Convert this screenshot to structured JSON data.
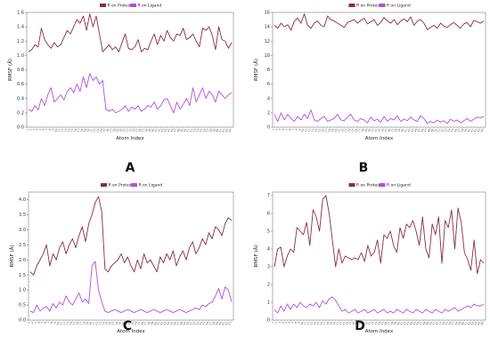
{
  "chart_data": [
    {
      "panel": "A",
      "type": "line",
      "ylabel": "RMSF (Å)",
      "xlabel": "Atom Index",
      "ylim": [
        0,
        1.6
      ],
      "yticks": [
        0.0,
        0.2,
        0.4,
        0.6,
        0.8,
        1.0,
        1.2,
        1.4,
        1.6
      ],
      "legend": "top-center",
      "grid": false,
      "colors": {
        "protein": "#8b2a4f",
        "ligand": "#b04fe0"
      },
      "series": [
        {
          "name": "R on Protein",
          "values": [
            1.05,
            1.08,
            1.15,
            1.12,
            1.38,
            1.22,
            1.15,
            1.1,
            1.18,
            1.12,
            1.15,
            1.25,
            1.35,
            1.3,
            1.4,
            1.5,
            1.45,
            1.55,
            1.35,
            1.58,
            1.4,
            1.55,
            1.3,
            1.05,
            1.1,
            1.15,
            1.08,
            1.12,
            1.05,
            1.18,
            1.3,
            1.1,
            1.08,
            1.12,
            1.22,
            1.05,
            1.1,
            1.08,
            1.2,
            1.3,
            1.15,
            1.28,
            1.2,
            1.35,
            1.25,
            1.2,
            1.3,
            1.28,
            1.38,
            1.22,
            1.25,
            1.3,
            1.2,
            1.12,
            1.38,
            1.35,
            1.4,
            1.28,
            1.08,
            1.4,
            1.22,
            1.2,
            1.1,
            1.18
          ]
        },
        {
          "name": "R on Ligand",
          "values": [
            0.25,
            0.22,
            0.3,
            0.24,
            0.4,
            0.3,
            0.45,
            0.55,
            0.35,
            0.4,
            0.45,
            0.38,
            0.5,
            0.55,
            0.48,
            0.6,
            0.5,
            0.7,
            0.55,
            0.75,
            0.65,
            0.7,
            0.6,
            0.65,
            0.25,
            0.22,
            0.25,
            0.2,
            0.22,
            0.25,
            0.3,
            0.22,
            0.28,
            0.25,
            0.3,
            0.22,
            0.25,
            0.3,
            0.28,
            0.35,
            0.25,
            0.3,
            0.38,
            0.4,
            0.3,
            0.2,
            0.35,
            0.25,
            0.32,
            0.4,
            0.3,
            0.55,
            0.35,
            0.45,
            0.55,
            0.4,
            0.5,
            0.45,
            0.35,
            0.5,
            0.45,
            0.4,
            0.45,
            0.48
          ]
        }
      ]
    },
    {
      "panel": "B",
      "type": "line",
      "ylabel": "RMSF (Å)",
      "xlabel": "Atom Index",
      "ylim": [
        0,
        16
      ],
      "yticks": [
        0,
        2,
        4,
        6,
        8,
        10,
        12,
        14,
        16
      ],
      "legend": "top-center",
      "grid": false,
      "colors": {
        "protein": "#8b2a4f",
        "ligand": "#b04fe0"
      },
      "series": [
        {
          "name": "R on Protein",
          "values": [
            14.2,
            13.8,
            14.5,
            14.0,
            14.3,
            13.5,
            14.8,
            15.2,
            14.5,
            15.8,
            14.2,
            13.8,
            14.5,
            14.8,
            14.2,
            14.0,
            15.5,
            15.0,
            14.8,
            14.5,
            14.2,
            13.9,
            14.6,
            14.8,
            15.0,
            14.5,
            14.9,
            15.2,
            14.4,
            14.7,
            15.0,
            14.2,
            14.6,
            15.3,
            14.8,
            14.5,
            15.0,
            14.3,
            14.8,
            15.1,
            14.7,
            15.4,
            14.2,
            14.8,
            15.0,
            14.5,
            13.6,
            13.9,
            14.2,
            13.8,
            14.5,
            14.1,
            13.9,
            14.3,
            14.6,
            14.2,
            13.8,
            14.4,
            14.6,
            14.0,
            14.9,
            14.7,
            14.5,
            14.8
          ]
        },
        {
          "name": "R on Ligand",
          "values": [
            1.8,
            0.8,
            2.0,
            1.0,
            1.8,
            1.2,
            0.8,
            1.5,
            1.0,
            1.8,
            1.2,
            2.4,
            1.0,
            0.8,
            1.2,
            1.5,
            0.8,
            1.0,
            1.2,
            1.8,
            1.0,
            0.9,
            1.4,
            1.8,
            1.0,
            0.8,
            1.2,
            1.0,
            0.6,
            1.4,
            0.9,
            1.1,
            0.7,
            1.5,
            0.8,
            1.2,
            1.0,
            1.6,
            0.8,
            1.1,
            0.9,
            1.4,
            1.0,
            0.8,
            1.6,
            1.2,
            0.5,
            0.8,
            0.6,
            1.0,
            0.7,
            0.9,
            0.5,
            1.1,
            0.8,
            1.0,
            0.6,
            0.9,
            1.2,
            0.8,
            1.1,
            1.4,
            1.3,
            1.5
          ]
        }
      ]
    },
    {
      "panel": "C",
      "type": "line",
      "ylabel": "RMSF (Å)",
      "xlabel": "Atom Index",
      "ylim": [
        0,
        4.25
      ],
      "yticks": [
        0.0,
        0.5,
        1.0,
        1.5,
        2.0,
        2.5,
        3.0,
        3.5,
        4.0
      ],
      "legend": "top-center",
      "grid": false,
      "colors": {
        "protein": "#8b2a4f",
        "ligand": "#b04fe0"
      },
      "series": [
        {
          "name": "R on Protein",
          "values": [
            1.6,
            1.5,
            1.8,
            2.0,
            2.2,
            2.5,
            1.8,
            2.2,
            2.0,
            2.4,
            2.6,
            2.2,
            2.5,
            2.7,
            2.4,
            2.8,
            3.1,
            2.6,
            3.2,
            3.5,
            3.9,
            4.1,
            3.6,
            1.7,
            1.6,
            1.8,
            1.9,
            2.0,
            2.2,
            1.9,
            2.1,
            1.8,
            1.6,
            2.0,
            1.7,
            2.2,
            1.9,
            2.0,
            1.8,
            1.6,
            2.1,
            1.9,
            2.2,
            2.0,
            2.3,
            1.8,
            2.1,
            2.3,
            2.0,
            2.4,
            2.6,
            2.2,
            2.4,
            2.7,
            2.5,
            2.9,
            2.7,
            3.1,
            3.0,
            2.8,
            3.2,
            3.4,
            3.3
          ]
        },
        {
          "name": "R on Ligand",
          "values": [
            0.3,
            0.25,
            0.5,
            0.3,
            0.4,
            0.45,
            0.3,
            0.55,
            0.4,
            0.6,
            0.5,
            0.8,
            0.6,
            0.5,
            0.7,
            0.9,
            0.6,
            0.7,
            0.55,
            1.8,
            1.95,
            1.0,
            0.6,
            0.3,
            0.25,
            0.3,
            0.35,
            0.3,
            0.25,
            0.3,
            0.35,
            0.3,
            0.25,
            0.3,
            0.35,
            0.3,
            0.25,
            0.3,
            0.35,
            0.3,
            0.25,
            0.3,
            0.35,
            0.3,
            0.25,
            0.3,
            0.35,
            0.3,
            0.25,
            0.3,
            0.35,
            0.4,
            0.35,
            0.5,
            0.45,
            0.55,
            0.6,
            0.8,
            1.05,
            0.7,
            1.1,
            1.0,
            0.6
          ]
        }
      ]
    },
    {
      "panel": "D",
      "type": "line",
      "ylabel": "RMSF (Å)",
      "xlabel": "Atom Index",
      "ylim": [
        0,
        7.2
      ],
      "yticks": [
        0,
        1,
        2,
        3,
        4,
        5,
        6,
        7
      ],
      "legend": "top-center",
      "grid": false,
      "colors": {
        "protein": "#8b2a4f",
        "ligand": "#b04fe0"
      },
      "series": [
        {
          "name": "R on Protein",
          "values": [
            3.0,
            4.0,
            4.1,
            3.0,
            3.6,
            4.0,
            3.8,
            5.2,
            5.0,
            4.8,
            5.5,
            4.2,
            6.2,
            5.8,
            5.0,
            6.8,
            7.0,
            6.0,
            4.5,
            3.0,
            4.0,
            3.2,
            3.6,
            3.5,
            3.4,
            3.5,
            3.4,
            3.8,
            3.3,
            4.2,
            3.6,
            3.8,
            4.5,
            3.2,
            4.8,
            4.6,
            5.0,
            4.2,
            3.8,
            5.2,
            4.6,
            5.4,
            5.2,
            5.6,
            5.0,
            4.2,
            5.8,
            4.0,
            3.5,
            5.4,
            4.8,
            5.8,
            3.2,
            5.6,
            5.2,
            6.2,
            4.0,
            6.3,
            5.5,
            3.8,
            3.4,
            2.8,
            4.5,
            2.6,
            3.4,
            3.2
          ]
        },
        {
          "name": "R on Ligand",
          "values": [
            0.6,
            0.4,
            0.8,
            0.5,
            0.9,
            0.6,
            0.9,
            0.7,
            1.0,
            0.8,
            0.7,
            0.9,
            0.8,
            1.0,
            0.7,
            1.1,
            0.9,
            1.2,
            1.3,
            1.1,
            0.8,
            0.5,
            0.6,
            0.4,
            0.5,
            0.6,
            0.4,
            0.5,
            0.6,
            0.4,
            0.5,
            0.6,
            0.4,
            0.5,
            0.6,
            0.4,
            0.5,
            0.4,
            0.6,
            0.5,
            0.4,
            0.6,
            0.5,
            0.4,
            0.6,
            0.5,
            0.4,
            0.6,
            0.5,
            0.4,
            0.6,
            0.5,
            0.4,
            0.6,
            0.5,
            0.6,
            0.7,
            0.5,
            0.6,
            0.7,
            0.8,
            0.7,
            0.9,
            0.8,
            0.8,
            0.9
          ]
        }
      ]
    }
  ]
}
